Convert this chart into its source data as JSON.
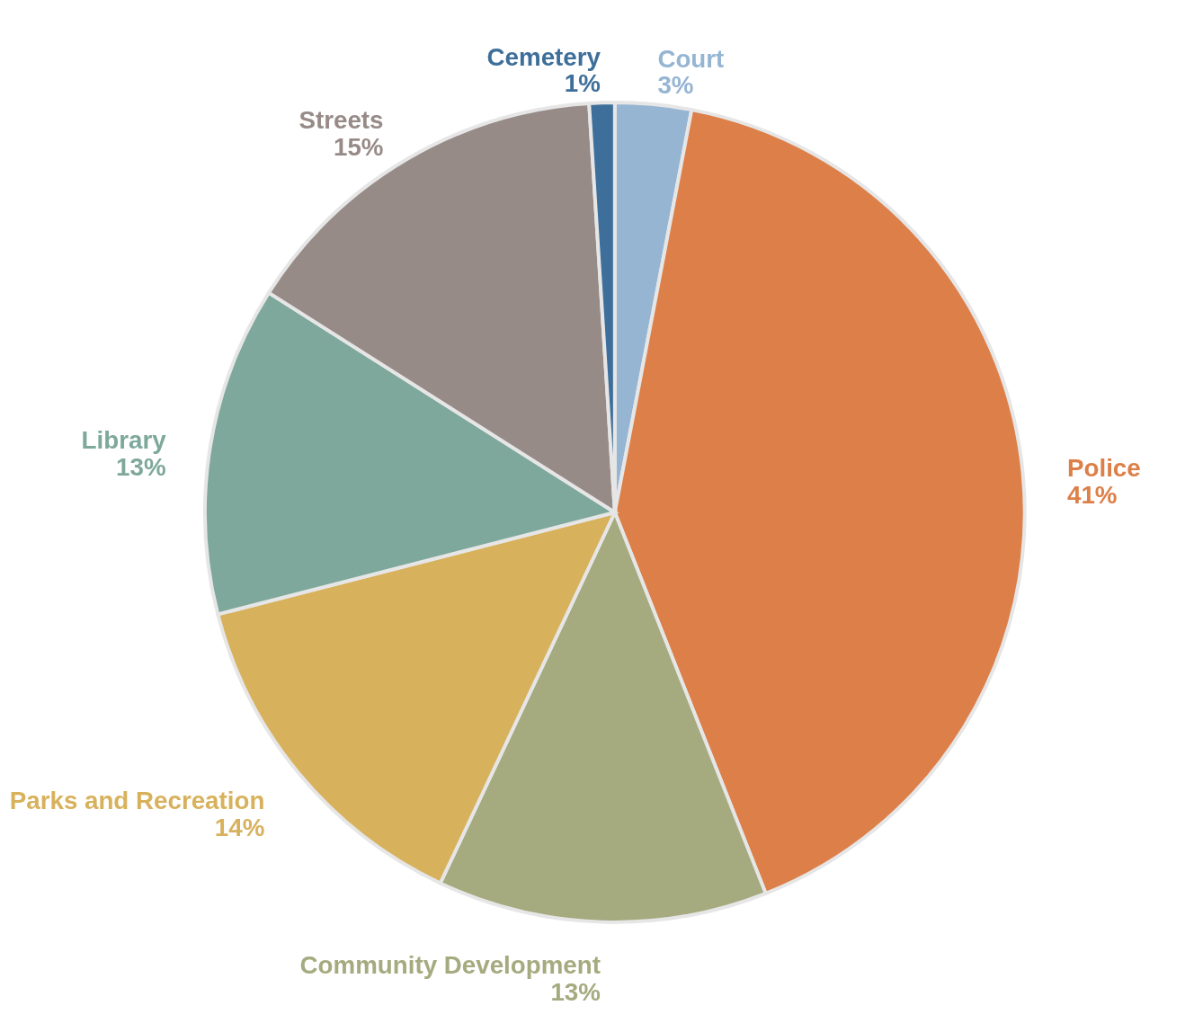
{
  "chart_data": {
    "type": "pie",
    "categories": [
      "Court",
      "Police",
      "Community Development",
      "Parks and Recreation",
      "Library",
      "Streets",
      "Cemetery"
    ],
    "values": [
      3,
      41,
      13,
      14,
      13,
      15,
      1
    ],
    "colors": [
      "#95b5d3",
      "#dd7f48",
      "#a5aa7f",
      "#d8b15c",
      "#7ea89b",
      "#978b88",
      "#3e6f9a"
    ],
    "value_labels": [
      "3%",
      "41%",
      "13%",
      "14%",
      "13%",
      "15%",
      "1%"
    ],
    "legend": false
  }
}
